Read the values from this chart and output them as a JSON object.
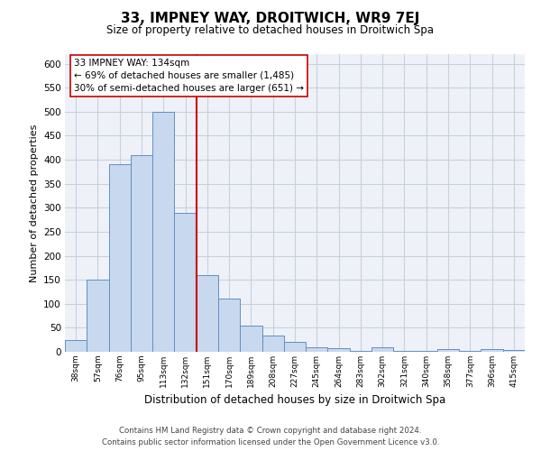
{
  "title": "33, IMPNEY WAY, DROITWICH, WR9 7EJ",
  "subtitle": "Size of property relative to detached houses in Droitwich Spa",
  "xlabel": "Distribution of detached houses by size in Droitwich Spa",
  "ylabel": "Number of detached properties",
  "bar_labels": [
    "38sqm",
    "57sqm",
    "76sqm",
    "95sqm",
    "113sqm",
    "132sqm",
    "151sqm",
    "170sqm",
    "189sqm",
    "208sqm",
    "227sqm",
    "245sqm",
    "264sqm",
    "283sqm",
    "302sqm",
    "321sqm",
    "340sqm",
    "358sqm",
    "377sqm",
    "396sqm",
    "415sqm"
  ],
  "bar_values": [
    25,
    150,
    390,
    410,
    500,
    290,
    160,
    110,
    55,
    33,
    20,
    10,
    8,
    2,
    10,
    2,
    2,
    5,
    2,
    5,
    3
  ],
  "bar_color": "#c8d8ee",
  "bar_edge_color": "#6090c0",
  "vline_x": 5.5,
  "property_line_label": "33 IMPNEY WAY: 134sqm",
  "annotation_line1": "← 69% of detached houses are smaller (1,485)",
  "annotation_line2": "30% of semi-detached houses are larger (651) →",
  "vline_color": "#cc0000",
  "ylim": [
    0,
    620
  ],
  "yticks": [
    0,
    50,
    100,
    150,
    200,
    250,
    300,
    350,
    400,
    450,
    500,
    550,
    600
  ],
  "footer_line1": "Contains HM Land Registry data © Crown copyright and database right 2024.",
  "footer_line2": "Contains public sector information licensed under the Open Government Licence v3.0.",
  "bg_color": "#ffffff",
  "plot_bg_color": "#eef2f8",
  "grid_color": "#c8d0dc"
}
